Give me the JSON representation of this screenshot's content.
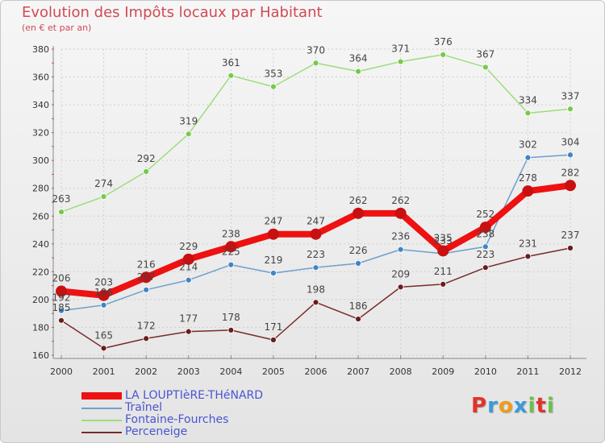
{
  "header": {
    "title": "Evolution des Impôts locaux par Habitant",
    "subtitle": "(en € et par an)"
  },
  "logo": {
    "text": "Proxiti",
    "colors": [
      "#e0342a",
      "#3a9ad9",
      "#f09b1c",
      "#3a9ad9",
      "#6cc04a",
      "#e0342a",
      "#6cc04a"
    ]
  },
  "chart_data": {
    "type": "line",
    "title": "Evolution des Impôts locaux par Habitant",
    "subtitle": "(en € et par an)",
    "xlabel": "",
    "ylabel": "",
    "categories": [
      "2000",
      "2001",
      "2002",
      "2003",
      "2004",
      "2005",
      "2006",
      "2007",
      "2008",
      "2009",
      "2010",
      "2011",
      "2012"
    ],
    "ylim": [
      160,
      380
    ],
    "yticks": [
      160,
      180,
      200,
      220,
      240,
      260,
      280,
      300,
      320,
      340,
      360,
      380
    ],
    "grid": true,
    "legend_position": "bottom-left",
    "series": [
      {
        "name": "LA LOUPTIèRE-THéNARD",
        "color": "#ee1111",
        "marker_color": "#c81010",
        "values": [
          206,
          203,
          216,
          229,
          238,
          247,
          247,
          262,
          262,
          235,
          252,
          278,
          282
        ]
      },
      {
        "name": "Traînel",
        "color": "#6e9fce",
        "marker_color": "#3f84c6",
        "values": [
          192,
          196,
          207,
          214,
          225,
          219,
          223,
          226,
          236,
          233,
          238,
          302,
          304
        ]
      },
      {
        "name": "Fontaine-Fourches",
        "color": "#9edc7a",
        "marker_color": "#78c94a",
        "values": [
          263,
          274,
          292,
          319,
          361,
          353,
          370,
          364,
          371,
          376,
          367,
          334,
          337
        ]
      },
      {
        "name": "Perceneige",
        "color": "#7a2a2a",
        "marker_color": "#6a1c1c",
        "values": [
          185,
          165,
          172,
          177,
          178,
          171,
          198,
          186,
          209,
          211,
          223,
          231,
          237
        ]
      }
    ],
    "data_labels": [
      {
        "series": "LA LOUPTIèRE-THéNARD",
        "texts": [
          "206",
          "203",
          "216",
          "229",
          "238",
          "247",
          "247",
          "262",
          "262",
          "235",
          "252",
          "278",
          "282"
        ]
      },
      {
        "series": "Traînel",
        "texts": [
          "192",
          "196",
          "207",
          "214",
          "225",
          "219",
          "223",
          "226",
          "236",
          "233",
          "238",
          "302",
          "304"
        ]
      },
      {
        "series": "Fontaine-Fourches",
        "texts": [
          "263",
          "274",
          "292",
          "319",
          "361",
          "353",
          "370",
          "364",
          "371",
          "376",
          "367",
          "334",
          "337"
        ]
      },
      {
        "series": "Perceneige",
        "texts": [
          "185",
          "165",
          "172",
          "177",
          "178",
          "171",
          "198",
          "186",
          "209",
          "211",
          "223",
          "231",
          "237"
        ]
      }
    ]
  },
  "legend": {
    "items": [
      {
        "label": "LA LOUPTIèRE-THéNARD",
        "color": "#ee1111"
      },
      {
        "label": "Traînel",
        "color": "#6e9fce"
      },
      {
        "label": "Fontaine-Fourches",
        "color": "#9edc7a"
      },
      {
        "label": "Perceneige",
        "color": "#7a2a2a"
      }
    ]
  }
}
